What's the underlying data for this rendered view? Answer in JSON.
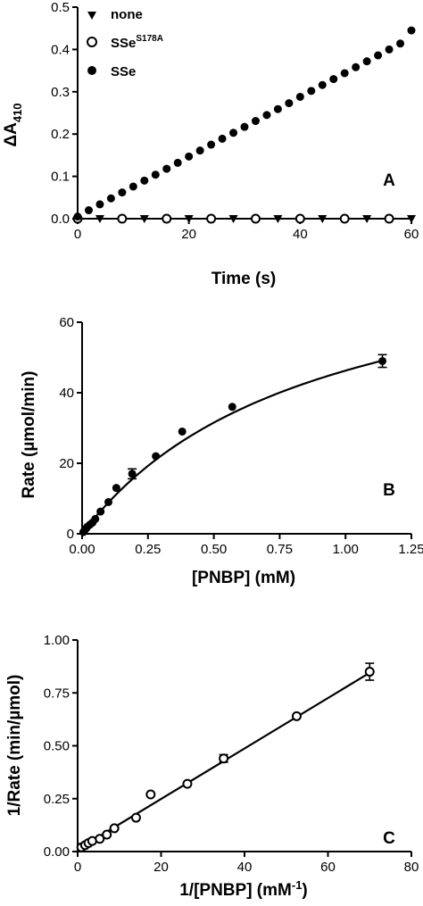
{
  "chart_data": [
    {
      "panel": "A",
      "type": "scatter",
      "xlabel": "Time (s)",
      "ylabel": "ΔA410",
      "xlim": [
        0,
        60
      ],
      "ylim": [
        0,
        0.5
      ],
      "xticks": [
        0,
        20,
        40,
        60
      ],
      "yticks": [
        0.0,
        0.1,
        0.2,
        0.3,
        0.4,
        0.5
      ],
      "xtick_labels": [
        "0",
        "20",
        "40",
        "60"
      ],
      "ytick_labels": [
        "0.0",
        "0.1",
        "0.2",
        "0.3",
        "0.4",
        "0.5"
      ],
      "legend_position": "top-left",
      "series": [
        {
          "name": "none",
          "marker": "triangle-down",
          "x": [
            4,
            12,
            20,
            28,
            36,
            44,
            52,
            60
          ],
          "y": [
            0,
            0,
            0,
            0,
            0,
            0,
            0,
            0
          ]
        },
        {
          "name": "SSeS178A",
          "marker": "open-circle",
          "x": [
            0,
            8,
            16,
            24,
            32,
            40,
            48,
            56
          ],
          "y": [
            0,
            0,
            0,
            0,
            0,
            0,
            0,
            0
          ]
        },
        {
          "name": "SSe",
          "marker": "filled-circle",
          "x": [
            0,
            2,
            4,
            6,
            8,
            10,
            12,
            14,
            16,
            18,
            20,
            22,
            24,
            26,
            28,
            30,
            32,
            34,
            36,
            38,
            40,
            42,
            44,
            46,
            48,
            50,
            52,
            54,
            56,
            58,
            60
          ],
          "y": [
            0.005,
            0.02,
            0.034,
            0.048,
            0.062,
            0.076,
            0.09,
            0.104,
            0.118,
            0.132,
            0.147,
            0.161,
            0.175,
            0.189,
            0.203,
            0.217,
            0.231,
            0.245,
            0.259,
            0.273,
            0.288,
            0.302,
            0.316,
            0.33,
            0.344,
            0.358,
            0.372,
            0.386,
            0.4,
            0.414,
            0.445
          ]
        }
      ]
    },
    {
      "panel": "B",
      "type": "scatter",
      "xlabel": "[PNBP] (mM)",
      "ylabel": "Rate (µmol/min)",
      "xlim": [
        0,
        1.25
      ],
      "ylim": [
        0,
        60
      ],
      "xticks": [
        0,
        0.25,
        0.5,
        0.75,
        1.0,
        1.25
      ],
      "yticks": [
        0,
        20,
        40,
        60
      ],
      "xtick_labels": [
        "0.00",
        "0.25",
        "0.50",
        "0.75",
        "1.00",
        "1.25"
      ],
      "ytick_labels": [
        "0",
        "20",
        "40",
        "60"
      ],
      "fit": {
        "type": "michaelis-menten",
        "Vmax": 87,
        "Km": 0.88
      },
      "series": [
        {
          "name": "",
          "marker": "filled-circle",
          "x": [
            0.005,
            0.01,
            0.015,
            0.02,
            0.03,
            0.04,
            0.05,
            0.07,
            0.1,
            0.13,
            0.19,
            0.28,
            0.38,
            0.57,
            1.14
          ],
          "y": [
            0.5,
            1.0,
            1.5,
            2.0,
            2.6,
            3.2,
            4.2,
            6.3,
            9.0,
            13.0,
            17.0,
            22.0,
            29.0,
            36.0,
            49.0
          ],
          "error": [
            0,
            0,
            0,
            0,
            0,
            0,
            0,
            0,
            0,
            0,
            1.4,
            0,
            0,
            0,
            1.8
          ]
        }
      ]
    },
    {
      "panel": "C",
      "type": "scatter",
      "xlabel": "1/[PNBP] (mM-1)",
      "ylabel": "1/Rate (min/µmol)",
      "xlim": [
        0,
        80
      ],
      "ylim": [
        0,
        1.0
      ],
      "xticks": [
        0,
        20,
        40,
        60,
        80
      ],
      "yticks": [
        0,
        0.25,
        0.5,
        0.75,
        1.0
      ],
      "xtick_labels": [
        "0",
        "20",
        "40",
        "60",
        "80"
      ],
      "ytick_labels": [
        "0.00",
        "0.25",
        "0.50",
        "0.75",
        "1.00"
      ],
      "fit": {
        "type": "linear",
        "x": [
          0,
          70
        ],
        "y": [
          0.01,
          0.845
        ]
      },
      "series": [
        {
          "name": "",
          "marker": "open-circle",
          "x": [
            0.9,
            1.8,
            2.6,
            3.5,
            5.3,
            7.0,
            8.8,
            14.0,
            17.5,
            26.3,
            35.0,
            52.5,
            70.0
          ],
          "y": [
            0.02,
            0.03,
            0.04,
            0.05,
            0.06,
            0.08,
            0.11,
            0.16,
            0.27,
            0.32,
            0.44,
            0.64,
            0.85
          ],
          "error": [
            0,
            0,
            0,
            0,
            0,
            0,
            0,
            0,
            0,
            0,
            0.018,
            0,
            0.04
          ]
        }
      ]
    }
  ],
  "panels": {
    "a": {
      "letter": "A",
      "xlabel": "Time   (s)",
      "ylabel_main": "ΔA",
      "ylabel_sub": "410",
      "legend": {
        "none": "none",
        "mut_base": "SSe",
        "mut_sup": "S178A",
        "sse": "SSe"
      }
    },
    "b": {
      "letter": "B",
      "xlabel": "[PNBP]   (mM)",
      "ylabel": "Rate   (µmol/min)"
    },
    "c": {
      "letter": "C",
      "xlabel_main": "1/[PNBP]   (mM",
      "xlabel_sup": "-1",
      "xlabel_end": ")",
      "ylabel": "1/Rate (min/µmol)"
    }
  }
}
